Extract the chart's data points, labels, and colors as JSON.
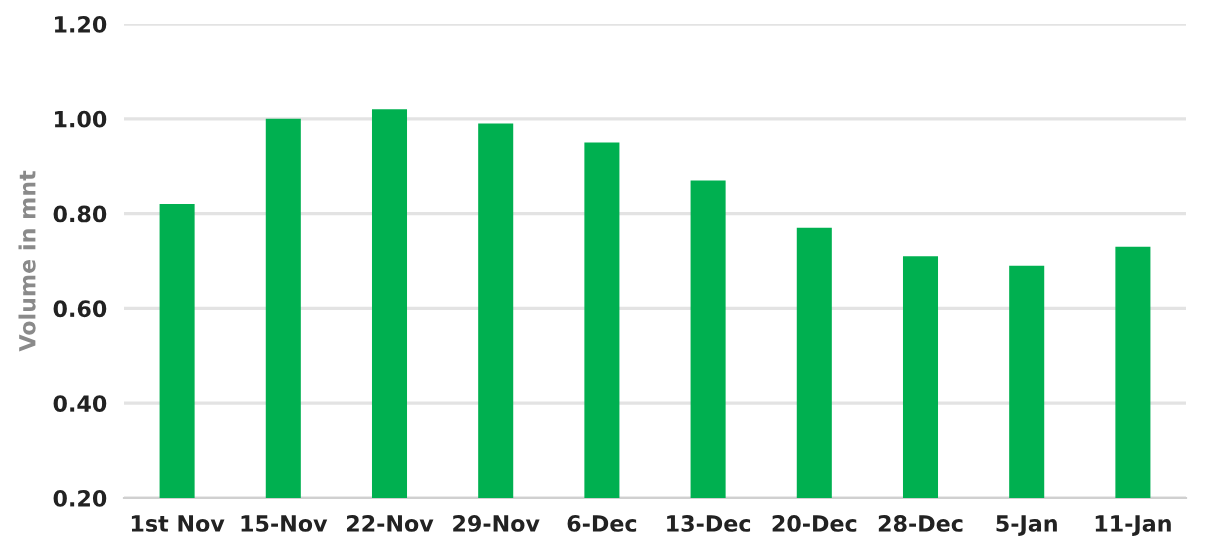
{
  "chart_data": {
    "type": "bar",
    "ylabel": "Volume in mnt",
    "categories": [
      "1st Nov",
      "15-Nov",
      "22-Nov",
      "29-Nov",
      "6-Dec",
      "13-Dec",
      "20-Dec",
      "28-Dec",
      "5-Jan",
      "11-Jan"
    ],
    "values": [
      0.82,
      1.0,
      1.02,
      0.99,
      0.95,
      0.87,
      0.77,
      0.71,
      0.69,
      0.73
    ],
    "color": "#00b050",
    "ylim": [
      0.2,
      1.2
    ],
    "yticks": [
      {
        "value": 0.2,
        "label": "0.20"
      },
      {
        "value": 0.4,
        "label": "0.40"
      },
      {
        "value": 0.6,
        "label": "0.60"
      },
      {
        "value": 0.8,
        "label": "0.80"
      },
      {
        "value": 1.0,
        "label": "1.00"
      },
      {
        "value": 1.2,
        "label": "1.20"
      }
    ],
    "grid": "y"
  }
}
